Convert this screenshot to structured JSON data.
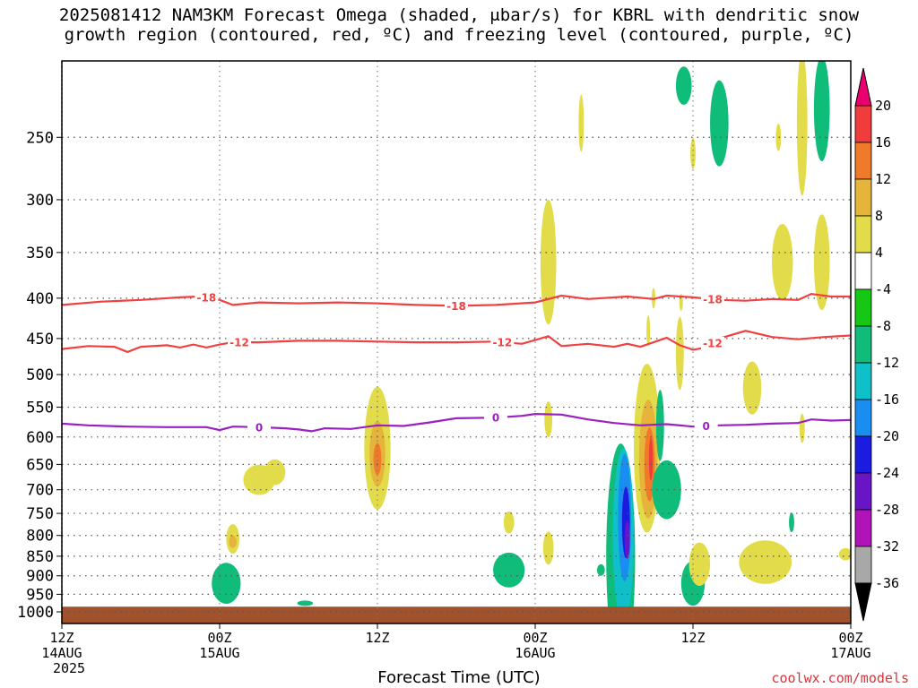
{
  "title": {
    "line1": "2025081412 NAM3KM Forecast Omega (shaded, μbar/s) for KBRL with dendritic snow",
    "line2": "growth region (contoured, red, ºC) and freezing level (contoured, purple, ºC)"
  },
  "xlabel": "Forecast Time (UTC)",
  "credit": "coolwx.com/models",
  "chart_data": {
    "type": "heatmap",
    "x_range_hours": [
      0,
      60
    ],
    "y_range_hpa": [
      1000,
      200
    ],
    "y_scale": "log",
    "grid": true,
    "y_ticks": [
      250,
      300,
      350,
      400,
      450,
      500,
      550,
      600,
      650,
      700,
      750,
      800,
      850,
      900,
      950,
      1000
    ],
    "x_ticks": [
      {
        "hour": 0,
        "lines": [
          "12Z",
          "14AUG",
          "2025"
        ]
      },
      {
        "hour": 12,
        "lines": [
          "00Z",
          "15AUG"
        ]
      },
      {
        "hour": 24,
        "lines": [
          "12Z"
        ]
      },
      {
        "hour": 36,
        "lines": [
          "00Z",
          "16AUG"
        ]
      },
      {
        "hour": 48,
        "lines": [
          "12Z"
        ]
      },
      {
        "hour": 60,
        "lines": [
          "00Z",
          "17AUG"
        ]
      }
    ],
    "colorbar": {
      "labels": [
        "20",
        "16",
        "12",
        "8",
        "4",
        "-4",
        "-8",
        "-12",
        "-16",
        "-20",
        "-24",
        "-28",
        "-32",
        "-36"
      ],
      "colors": [
        "#e8006e",
        "#f03c3c",
        "#ee7a2a",
        "#e6b43a",
        "#e3dc4a",
        "#ffffff",
        "#14c814",
        "#0fbc7a",
        "#10c0c8",
        "#1a8ef0",
        "#1c1ce0",
        "#6a14c8",
        "#b014b8",
        "#a8a8a8",
        "#000000"
      ]
    },
    "ground": {
      "color": "#a0522d",
      "from_hpa": 985
    },
    "contours": [
      {
        "label": "-18",
        "color": "#f04040",
        "points": [
          [
            0,
            408
          ],
          [
            3,
            404
          ],
          [
            6,
            402
          ],
          [
            9,
            399
          ],
          [
            10.5,
            398
          ],
          [
            12,
            402
          ],
          [
            13,
            408
          ],
          [
            15,
            405
          ],
          [
            18,
            406
          ],
          [
            21,
            405
          ],
          [
            24,
            406
          ],
          [
            27,
            408
          ],
          [
            30,
            409
          ],
          [
            33,
            408
          ],
          [
            36,
            405
          ],
          [
            38,
            397
          ],
          [
            40,
            401
          ],
          [
            43,
            398
          ],
          [
            45,
            401
          ],
          [
            46,
            397
          ],
          [
            48,
            399
          ],
          [
            50,
            402
          ],
          [
            52,
            403
          ],
          [
            54,
            401
          ],
          [
            56,
            402
          ],
          [
            57,
            395
          ],
          [
            58.5,
            398
          ],
          [
            60,
            398
          ]
        ],
        "label_hours": [
          11,
          30,
          49.5
        ]
      },
      {
        "label": "-12",
        "color": "#f04040",
        "points": [
          [
            0,
            464
          ],
          [
            2,
            460
          ],
          [
            4,
            461
          ],
          [
            5,
            468
          ],
          [
            6,
            461
          ],
          [
            8,
            459
          ],
          [
            9,
            462
          ],
          [
            10,
            458
          ],
          [
            11,
            462
          ],
          [
            12,
            458
          ],
          [
            13,
            455
          ],
          [
            15,
            455
          ],
          [
            18,
            453
          ],
          [
            21,
            453
          ],
          [
            24,
            454
          ],
          [
            27,
            455
          ],
          [
            30,
            455
          ],
          [
            33,
            454
          ],
          [
            35,
            457
          ],
          [
            37,
            447
          ],
          [
            38,
            460
          ],
          [
            40,
            457
          ],
          [
            42,
            461
          ],
          [
            43,
            457
          ],
          [
            44,
            461
          ],
          [
            45,
            455
          ],
          [
            46,
            449
          ],
          [
            47,
            459
          ],
          [
            48,
            465
          ],
          [
            49,
            462
          ],
          [
            50,
            450
          ],
          [
            52,
            440
          ],
          [
            54,
            448
          ],
          [
            56,
            451
          ],
          [
            58,
            448
          ],
          [
            60,
            446
          ]
        ],
        "label_hours": [
          13.5,
          33.5,
          49.5
        ]
      },
      {
        "label": "0",
        "color": "#9a20c0",
        "points": [
          [
            0,
            577
          ],
          [
            2,
            580
          ],
          [
            5,
            582
          ],
          [
            8,
            583
          ],
          [
            11,
            583
          ],
          [
            12,
            588
          ],
          [
            13,
            582
          ],
          [
            15,
            583
          ],
          [
            17,
            585
          ],
          [
            18,
            587
          ],
          [
            19,
            590
          ],
          [
            20,
            585
          ],
          [
            22,
            586
          ],
          [
            24,
            580
          ],
          [
            26,
            581
          ],
          [
            28,
            575
          ],
          [
            30,
            568
          ],
          [
            33,
            567
          ],
          [
            35,
            564
          ],
          [
            36,
            561
          ],
          [
            38,
            562
          ],
          [
            40,
            570
          ],
          [
            42,
            576
          ],
          [
            44,
            580
          ],
          [
            46,
            578
          ],
          [
            48,
            582
          ],
          [
            50,
            580
          ],
          [
            52,
            579
          ],
          [
            54,
            577
          ],
          [
            56,
            576
          ],
          [
            57,
            570
          ],
          [
            58.5,
            572
          ],
          [
            60,
            571
          ]
        ],
        "label_hours": [
          15,
          33,
          49
        ]
      }
    ],
    "shaded_regions": [
      {
        "value": 4,
        "center": [
          16.2,
          665
        ],
        "rx": 0.8,
        "ry": 25
      },
      {
        "value": 4,
        "center": [
          15.0,
          680
        ],
        "rx": 1.2,
        "ry": 30
      },
      {
        "value": 4,
        "center": [
          13.0,
          808
        ],
        "rx": 0.5,
        "ry": 35
      },
      {
        "value": 8,
        "center": [
          13.0,
          815
        ],
        "rx": 0.3,
        "ry": 15
      },
      {
        "value": -8,
        "center": [
          12.5,
          920
        ],
        "rx": 1.1,
        "ry": 55
      },
      {
        "value": -8,
        "center": [
          18.5,
          975
        ],
        "rx": 0.6,
        "ry": 4
      },
      {
        "value": 4,
        "center": [
          24.0,
          620
        ],
        "rx": 1.0,
        "ry": 110
      },
      {
        "value": 8,
        "center": [
          24.0,
          630
        ],
        "rx": 0.6,
        "ry": 60
      },
      {
        "value": 12,
        "center": [
          24.0,
          640
        ],
        "rx": 0.3,
        "ry": 30
      },
      {
        "value": 4,
        "center": [
          37.0,
          360
        ],
        "rx": 0.6,
        "ry": 65
      },
      {
        "value": 4,
        "center": [
          37.0,
          570
        ],
        "rx": 0.3,
        "ry": 30
      },
      {
        "value": 4,
        "center": [
          37.0,
          830
        ],
        "rx": 0.4,
        "ry": 40
      },
      {
        "value": 4,
        "center": [
          34.0,
          770
        ],
        "rx": 0.4,
        "ry": 25
      },
      {
        "value": -8,
        "center": [
          34.0,
          885
        ],
        "rx": 1.2,
        "ry": 45
      },
      {
        "value": 4,
        "center": [
          39.5,
          240
        ],
        "rx": 0.2,
        "ry": 20
      },
      {
        "value": -8,
        "center": [
          42.5,
          850
        ],
        "rx": 1.1,
        "ry": 270
      },
      {
        "value": -12,
        "center": [
          42.7,
          800
        ],
        "rx": 0.8,
        "ry": 200
      },
      {
        "value": -16,
        "center": [
          42.8,
          760
        ],
        "rx": 0.5,
        "ry": 140
      },
      {
        "value": -20,
        "center": [
          42.9,
          770
        ],
        "rx": 0.3,
        "ry": 80
      },
      {
        "value": -24,
        "center": [
          43.0,
          810
        ],
        "rx": 0.2,
        "ry": 45
      },
      {
        "value": 4,
        "center": [
          44.5,
          620
        ],
        "rx": 1.0,
        "ry": 150
      },
      {
        "value": 8,
        "center": [
          44.6,
          640
        ],
        "rx": 0.7,
        "ry": 110
      },
      {
        "value": 12,
        "center": [
          44.7,
          650
        ],
        "rx": 0.4,
        "ry": 70
      },
      {
        "value": 16,
        "center": [
          44.8,
          640
        ],
        "rx": 0.15,
        "ry": 40
      },
      {
        "value": -8,
        "center": [
          45.5,
          580
        ],
        "rx": 0.3,
        "ry": 60
      },
      {
        "value": -8,
        "center": [
          46.0,
          700
        ],
        "rx": 1.1,
        "ry": 60
      },
      {
        "value": -8,
        "center": [
          48.0,
          920
        ],
        "rx": 0.9,
        "ry": 60
      },
      {
        "value": -8,
        "center": [
          41.0,
          885
        ],
        "rx": 0.3,
        "ry": 15
      },
      {
        "value": 4,
        "center": [
          47.0,
          470
        ],
        "rx": 0.3,
        "ry": 50
      },
      {
        "value": 4,
        "center": [
          48.5,
          870
        ],
        "rx": 0.8,
        "ry": 55
      },
      {
        "value": 4,
        "center": [
          52.5,
          520
        ],
        "rx": 0.7,
        "ry": 40
      },
      {
        "value": 4,
        "center": [
          53.5,
          865
        ],
        "rx": 2.0,
        "ry": 55
      },
      {
        "value": 4,
        "center": [
          48.0,
          262
        ],
        "rx": 0.2,
        "ry": 12
      },
      {
        "value": -8,
        "center": [
          50.0,
          240
        ],
        "rx": 0.7,
        "ry": 30
      },
      {
        "value": -8,
        "center": [
          47.3,
          215
        ],
        "rx": 0.6,
        "ry": 12
      },
      {
        "value": 4,
        "center": [
          54.5,
          250
        ],
        "rx": 0.2,
        "ry": 10
      },
      {
        "value": 4,
        "center": [
          56.3,
          240
        ],
        "rx": 0.4,
        "ry": 50
      },
      {
        "value": 4,
        "center": [
          54.8,
          360
        ],
        "rx": 0.8,
        "ry": 40
      },
      {
        "value": 4,
        "center": [
          57.8,
          360
        ],
        "rx": 0.6,
        "ry": 50
      },
      {
        "value": -8,
        "center": [
          57.8,
          230
        ],
        "rx": 0.6,
        "ry": 35
      },
      {
        "value": 4,
        "center": [
          56.3,
          585
        ],
        "rx": 0.2,
        "ry": 25
      },
      {
        "value": -8,
        "center": [
          55.5,
          770
        ],
        "rx": 0.2,
        "ry": 22
      },
      {
        "value": 4,
        "center": [
          59.6,
          845
        ],
        "rx": 0.5,
        "ry": 15
      },
      {
        "value": 4,
        "center": [
          44.6,
          440
        ],
        "rx": 0.1,
        "ry": 20
      },
      {
        "value": 4,
        "center": [
          45.0,
          400
        ],
        "rx": 0.1,
        "ry": 12
      },
      {
        "value": 4,
        "center": [
          47.1,
          405
        ],
        "rx": 0.1,
        "ry": 10
      }
    ]
  }
}
